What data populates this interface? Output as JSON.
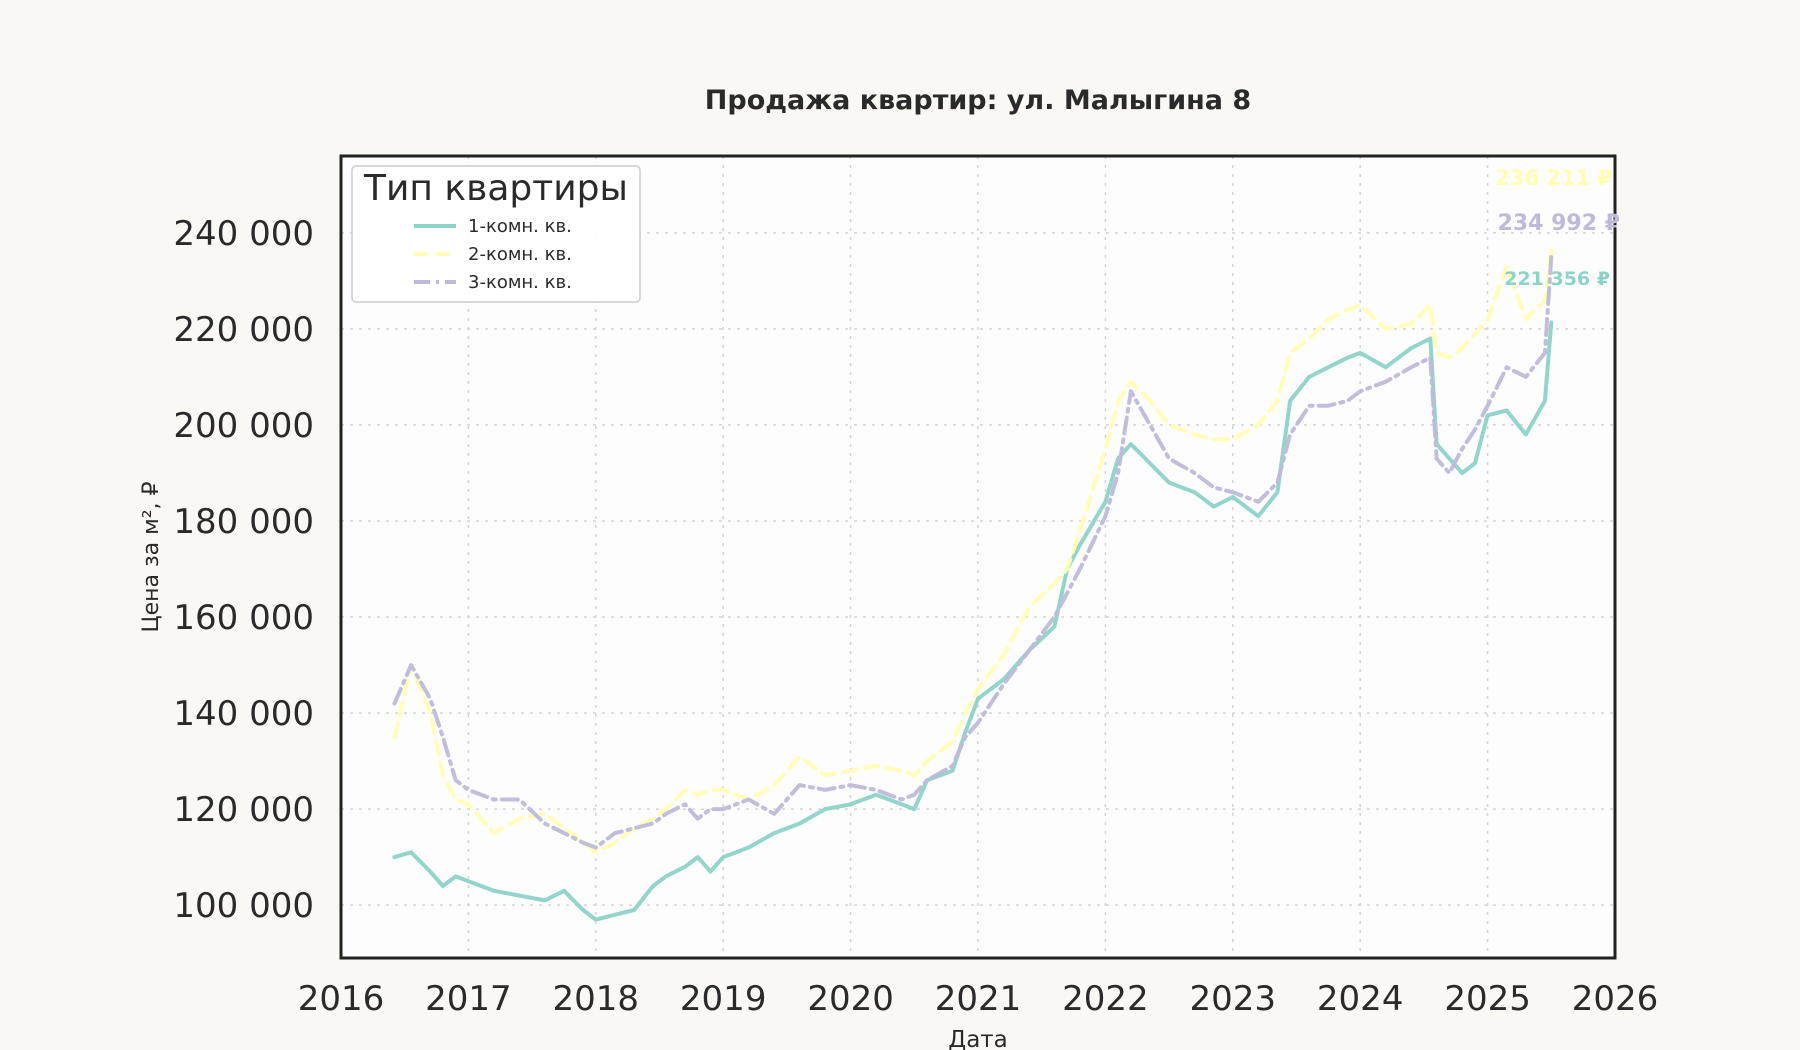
{
  "chart_data": {
    "type": "line",
    "title": "Продажа квартир: ул. Малыгина 8",
    "xlabel": "Дата",
    "ylabel": "Цена за м², ₽",
    "xlim": [
      2016.0,
      2026.0
    ],
    "ylim": [
      89000,
      256000
    ],
    "x_ticks": [
      2016,
      2017,
      2018,
      2019,
      2020,
      2021,
      2022,
      2023,
      2024,
      2025,
      2026
    ],
    "x_tick_labels": [
      "2016",
      "2017",
      "2018",
      "2019",
      "2020",
      "2021",
      "2022",
      "2023",
      "2024",
      "2025",
      "2026"
    ],
    "y_ticks": [
      100000,
      120000,
      140000,
      160000,
      180000,
      200000,
      220000,
      240000
    ],
    "y_tick_labels": [
      "100 000",
      "120 000",
      "140 000",
      "160 000",
      "180 000",
      "200 000",
      "220 000",
      "240 000"
    ],
    "grid": true,
    "legend": {
      "title": "Тип квартиры",
      "placement": "top-left"
    },
    "series": [
      {
        "name": "1-комн. кв.",
        "color": "#8dd3c7",
        "dash": "solid",
        "end_label": "221 356 ₽",
        "x": [
          2016.42,
          2016.55,
          2016.7,
          2016.8,
          2016.9,
          2017.0,
          2017.2,
          2017.4,
          2017.6,
          2017.75,
          2017.9,
          2018.0,
          2018.15,
          2018.3,
          2018.45,
          2018.55,
          2018.7,
          2018.8,
          2018.9,
          2019.0,
          2019.2,
          2019.4,
          2019.6,
          2019.8,
          2020.0,
          2020.2,
          2020.4,
          2020.5,
          2020.6,
          2020.8,
          2020.9,
          2021.0,
          2021.2,
          2021.4,
          2021.6,
          2021.7,
          2021.8,
          2022.0,
          2022.1,
          2022.2,
          2022.35,
          2022.5,
          2022.7,
          2022.85,
          2023.0,
          2023.2,
          2023.35,
          2023.45,
          2023.6,
          2023.75,
          2023.9,
          2024.0,
          2024.2,
          2024.4,
          2024.55,
          2024.6,
          2024.7,
          2024.8,
          2024.9,
          2025.0,
          2025.15,
          2025.3,
          2025.45,
          2025.5
        ],
        "y": [
          110000,
          111000,
          107000,
          104000,
          106000,
          105000,
          103000,
          102000,
          101000,
          103000,
          99000,
          97000,
          98000,
          99000,
          104000,
          106000,
          108000,
          110000,
          107000,
          110000,
          112000,
          115000,
          117000,
          120000,
          121000,
          123000,
          121000,
          120000,
          126000,
          128000,
          136000,
          143000,
          147000,
          153000,
          158000,
          170000,
          175000,
          184000,
          193000,
          196000,
          192000,
          188000,
          186000,
          183000,
          185000,
          181000,
          186000,
          205000,
          210000,
          212000,
          214000,
          215000,
          212000,
          216000,
          218000,
          196000,
          193000,
          190000,
          192000,
          202000,
          203000,
          198000,
          205000,
          221356
        ]
      },
      {
        "name": "2-комн. кв.",
        "color": "#ffffb3",
        "dash": "long-dash",
        "end_label": "236 211 ₽",
        "x": [
          2016.42,
          2016.55,
          2016.7,
          2016.8,
          2016.9,
          2017.0,
          2017.2,
          2017.4,
          2017.6,
          2017.75,
          2017.9,
          2018.0,
          2018.15,
          2018.3,
          2018.45,
          2018.55,
          2018.7,
          2018.8,
          2018.9,
          2019.0,
          2019.2,
          2019.4,
          2019.6,
          2019.8,
          2020.0,
          2020.2,
          2020.4,
          2020.5,
          2020.6,
          2020.8,
          2020.9,
          2021.0,
          2021.2,
          2021.4,
          2021.6,
          2021.7,
          2021.8,
          2022.0,
          2022.1,
          2022.2,
          2022.35,
          2022.5,
          2022.7,
          2022.85,
          2023.0,
          2023.2,
          2023.35,
          2023.45,
          2023.6,
          2023.75,
          2023.9,
          2024.0,
          2024.2,
          2024.4,
          2024.55,
          2024.6,
          2024.7,
          2024.8,
          2024.9,
          2025.0,
          2025.15,
          2025.3,
          2025.45,
          2025.5
        ],
        "y": [
          135000,
          150000,
          140000,
          127000,
          122000,
          121000,
          115000,
          118000,
          119000,
          116000,
          113000,
          111000,
          113000,
          116000,
          118000,
          120000,
          124000,
          123000,
          124000,
          124000,
          122000,
          125000,
          131000,
          127000,
          128000,
          129000,
          128000,
          127000,
          130000,
          134000,
          140000,
          145000,
          152000,
          162000,
          167000,
          170000,
          178000,
          195000,
          205000,
          209000,
          205000,
          200000,
          198000,
          197000,
          197000,
          200000,
          205000,
          215000,
          218000,
          222000,
          224000,
          225000,
          220000,
          221000,
          225000,
          215000,
          214000,
          216000,
          219000,
          222000,
          233000,
          222000,
          226000,
          236211
        ]
      },
      {
        "name": "3-комн. кв.",
        "color": "#bebada",
        "dash": "dash-dot",
        "end_label": "234 992 ₽",
        "x": [
          2016.42,
          2016.55,
          2016.7,
          2016.8,
          2016.9,
          2017.0,
          2017.2,
          2017.4,
          2017.6,
          2017.75,
          2017.9,
          2018.0,
          2018.15,
          2018.3,
          2018.45,
          2018.55,
          2018.7,
          2018.8,
          2018.9,
          2019.0,
          2019.2,
          2019.4,
          2019.6,
          2019.8,
          2020.0,
          2020.2,
          2020.4,
          2020.5,
          2020.6,
          2020.8,
          2020.9,
          2021.0,
          2021.2,
          2021.4,
          2021.6,
          2021.7,
          2021.8,
          2022.0,
          2022.1,
          2022.2,
          2022.35,
          2022.5,
          2022.7,
          2022.85,
          2023.0,
          2023.2,
          2023.35,
          2023.45,
          2023.6,
          2023.75,
          2023.9,
          2024.0,
          2024.2,
          2024.4,
          2024.55,
          2024.6,
          2024.7,
          2024.8,
          2024.9,
          2025.0,
          2025.15,
          2025.3,
          2025.45,
          2025.5
        ],
        "y": [
          142000,
          150000,
          143000,
          135000,
          126000,
          124000,
          122000,
          122000,
          117000,
          115000,
          113000,
          112000,
          115000,
          116000,
          117000,
          119000,
          121000,
          118000,
          120000,
          120000,
          122000,
          119000,
          125000,
          124000,
          125000,
          124000,
          122000,
          123000,
          126000,
          129000,
          135000,
          138000,
          146000,
          153000,
          160000,
          165000,
          170000,
          181000,
          190000,
          207000,
          200000,
          193000,
          190000,
          187000,
          186000,
          184000,
          188000,
          198000,
          204000,
          204000,
          205000,
          207000,
          209000,
          212000,
          214000,
          193000,
          190000,
          195000,
          199000,
          204000,
          212000,
          210000,
          215000,
          234992
        ]
      }
    ]
  }
}
